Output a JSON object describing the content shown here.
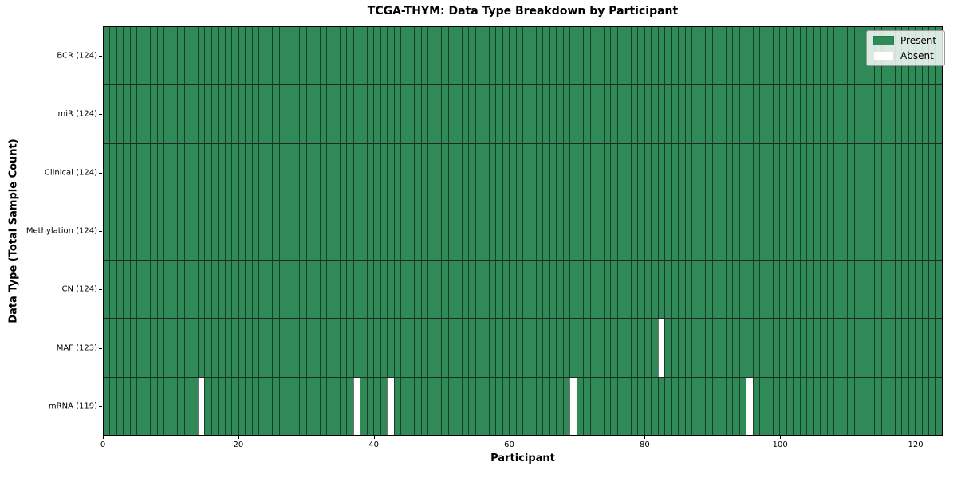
{
  "chart_data": {
    "type": "heatmap",
    "title": "TCGA-THYM: Data Type Breakdown by Participant",
    "xlabel": "Participant",
    "ylabel": "Data Type (Total Sample Count)",
    "n_participants": 124,
    "x_range": [
      0,
      124
    ],
    "x_ticks": [
      0,
      20,
      40,
      60,
      80,
      100,
      120
    ],
    "grid": "cell-edges",
    "legend_position": "upper right",
    "rows": [
      {
        "name": "BCR",
        "label": "BCR (124)",
        "present_count": 124,
        "absent_participants": []
      },
      {
        "name": "miR",
        "label": "miR (124)",
        "present_count": 124,
        "absent_participants": []
      },
      {
        "name": "Clinical",
        "label": "Clinical (124)",
        "present_count": 124,
        "absent_participants": []
      },
      {
        "name": "Methylation",
        "label": "Methylation (124)",
        "present_count": 124,
        "absent_participants": []
      },
      {
        "name": "CN",
        "label": "CN (124)",
        "present_count": 124,
        "absent_participants": []
      },
      {
        "name": "MAF",
        "label": "MAF (123)",
        "present_count": 123,
        "absent_participants": [
          82
        ]
      },
      {
        "name": "mRNA",
        "label": "mRNA (119)",
        "present_count": 119,
        "absent_participants": [
          14,
          37,
          42,
          69,
          95
        ]
      }
    ],
    "legend": [
      {
        "label": "Present",
        "color": "#2f8a57"
      },
      {
        "label": "Absent",
        "color": "#ffffff"
      }
    ],
    "colors": {
      "present": "#2f8a57",
      "absent": "#ffffff",
      "cell_edge": "rgba(0,0,0,0.55)",
      "row_separator": "#000000",
      "spine": "#000000"
    }
  }
}
